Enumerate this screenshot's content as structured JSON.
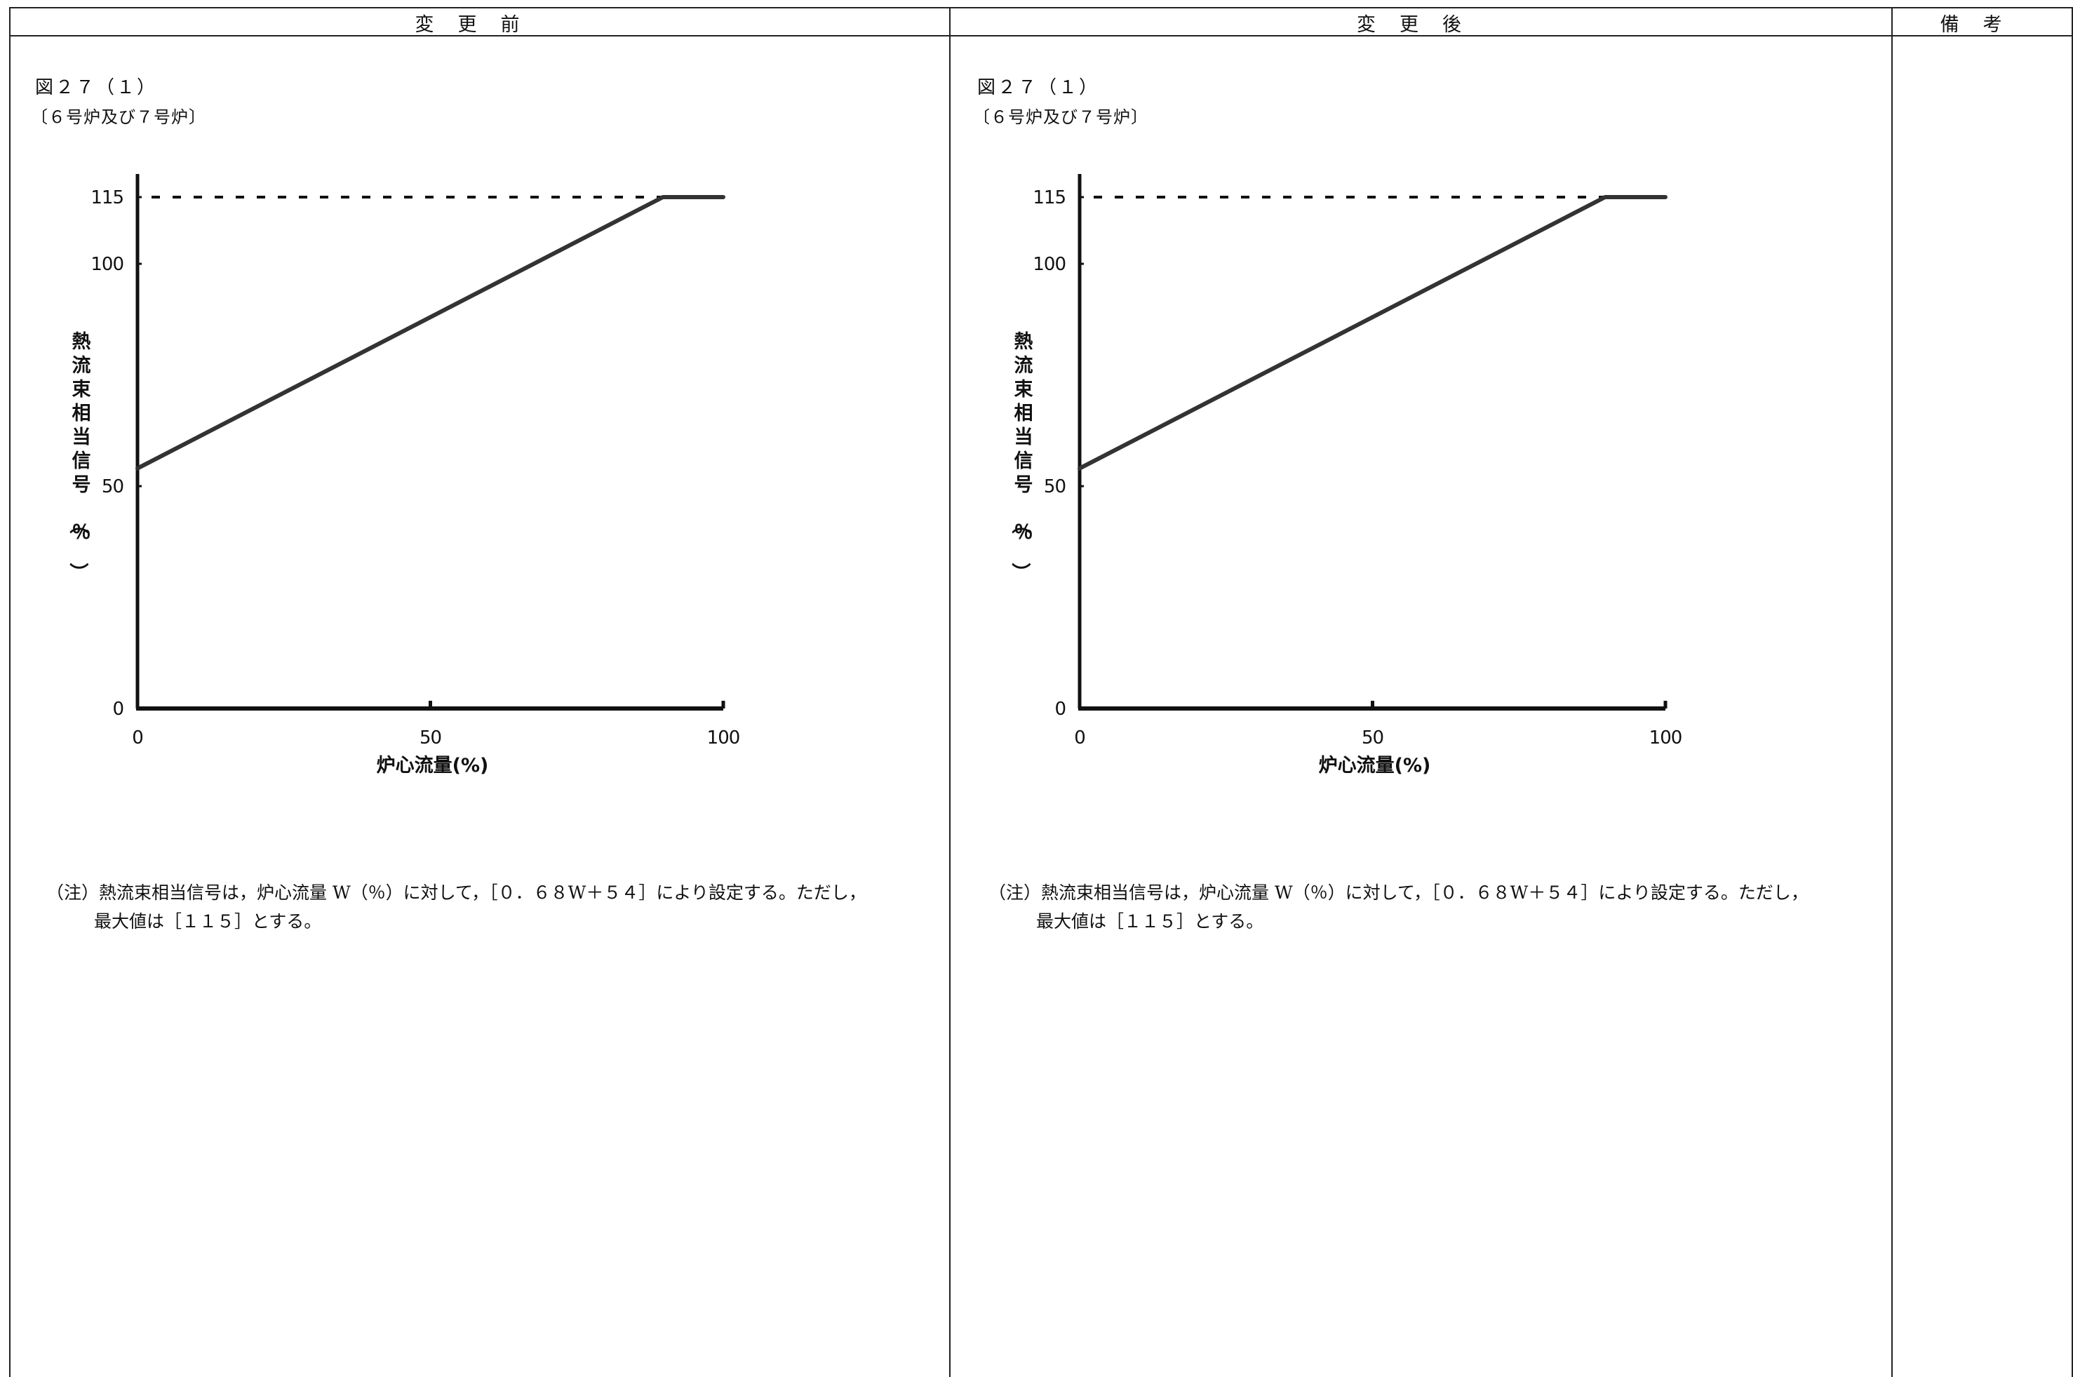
{
  "header": {
    "before_label": "変更前",
    "after_label": "変更後",
    "remarks_label": "備考"
  },
  "panels": [
    {
      "figure_title": "図２７（１）",
      "figure_subtitle": "〔６号炉及び７号炉〕",
      "note_line1": "（注）熱流束相当信号は，炉心流量 W（％）に対して，［０．６８W＋５４］により設定する。ただし，",
      "note_line2": "最大値は［１１５］とする。"
    },
    {
      "figure_title": "図２７（１）",
      "figure_subtitle": "〔６号炉及び７号炉〕",
      "note_line1": "（注）熱流束相当信号は，炉心流量 W（％）に対して，［０．６８W＋５４］により設定する。ただし，",
      "note_line2": "最大値は［１１５］とする。"
    }
  ],
  "chart_data": [
    {
      "type": "line",
      "xlabel": "炉心流量(%)",
      "ylabel": "熱流束相当信号（％）",
      "x_ticks": [
        0,
        50,
        100
      ],
      "y_ticks": [
        0,
        50,
        100,
        115
      ],
      "xlim": [
        0,
        100
      ],
      "ylim": [
        0,
        115
      ],
      "series": [
        {
          "x": [
            0,
            89.7,
            100
          ],
          "y": [
            54,
            115,
            115
          ]
        }
      ],
      "reference_line": {
        "y": 115,
        "style": "dashed",
        "x": [
          0,
          89.7
        ]
      }
    },
    {
      "type": "line",
      "xlabel": "炉心流量(%)",
      "ylabel": "熱流束相当信号（％）",
      "x_ticks": [
        0,
        50,
        100
      ],
      "y_ticks": [
        0,
        50,
        100,
        115
      ],
      "xlim": [
        0,
        100
      ],
      "ylim": [
        0,
        115
      ],
      "series": [
        {
          "x": [
            0,
            89.7,
            100
          ],
          "y": [
            54,
            115,
            115
          ]
        }
      ],
      "reference_line": {
        "y": 115,
        "style": "dashed",
        "x": [
          0,
          89.7
        ]
      }
    }
  ]
}
